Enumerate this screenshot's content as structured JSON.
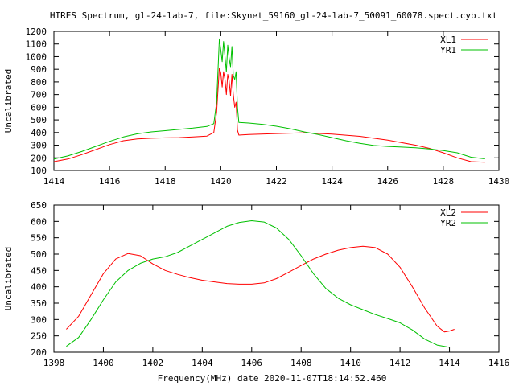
{
  "figure": {
    "title": "HIRES Spectrum, gl-24-lab-7, file:Skynet_59160_gl-24-lab-7_50091_60078.spect.cyb.txt",
    "xlabel": "Frequency(MHz) date 2020-11-07T18:14:52.460"
  },
  "chart_data": [
    {
      "type": "line",
      "title": "",
      "xlabel": "",
      "ylabel": "Uncalibrated",
      "xlim": [
        1414,
        1430
      ],
      "ylim": [
        100,
        1200
      ],
      "xticks": [
        1414,
        1416,
        1418,
        1420,
        1422,
        1424,
        1426,
        1428,
        1430
      ],
      "yticks": [
        100,
        200,
        300,
        400,
        500,
        600,
        700,
        800,
        900,
        1000,
        1100,
        1200
      ],
      "grid": false,
      "legend": "top-right",
      "series": [
        {
          "name": "XL1",
          "color": "#ff0000",
          "points": [
            [
              1414.0,
              170
            ],
            [
              1414.5,
              190
            ],
            [
              1415.0,
              225
            ],
            [
              1415.5,
              265
            ],
            [
              1416.0,
              305
            ],
            [
              1416.5,
              335
            ],
            [
              1417.0,
              350
            ],
            [
              1417.5,
              355
            ],
            [
              1418.0,
              358
            ],
            [
              1418.5,
              360
            ],
            [
              1419.0,
              365
            ],
            [
              1419.5,
              372
            ],
            [
              1419.75,
              400
            ],
            [
              1419.85,
              560
            ],
            [
              1419.95,
              910
            ],
            [
              1420.0,
              870
            ],
            [
              1420.05,
              760
            ],
            [
              1420.1,
              880
            ],
            [
              1420.15,
              820
            ],
            [
              1420.2,
              700
            ],
            [
              1420.25,
              860
            ],
            [
              1420.3,
              810
            ],
            [
              1420.35,
              690
            ],
            [
              1420.4,
              860
            ],
            [
              1420.45,
              700
            ],
            [
              1420.5,
              600
            ],
            [
              1420.55,
              640
            ],
            [
              1420.6,
              420
            ],
            [
              1420.65,
              380
            ],
            [
              1421.0,
              385
            ],
            [
              1422.0,
              392
            ],
            [
              1423.0,
              398
            ],
            [
              1424.0,
              388
            ],
            [
              1425.0,
              370
            ],
            [
              1425.5,
              355
            ],
            [
              1426.0,
              340
            ],
            [
              1426.5,
              320
            ],
            [
              1427.0,
              300
            ],
            [
              1427.5,
              275
            ],
            [
              1428.0,
              240
            ],
            [
              1428.5,
              200
            ],
            [
              1429.0,
              170
            ],
            [
              1429.5,
              165
            ]
          ]
        },
        {
          "name": "YR1",
          "color": "#00c000",
          "points": [
            [
              1414.0,
              190
            ],
            [
              1414.5,
              215
            ],
            [
              1415.0,
              250
            ],
            [
              1415.5,
              290
            ],
            [
              1416.0,
              330
            ],
            [
              1416.5,
              365
            ],
            [
              1417.0,
              390
            ],
            [
              1417.5,
              405
            ],
            [
              1418.0,
              415
            ],
            [
              1418.5,
              425
            ],
            [
              1419.0,
              435
            ],
            [
              1419.5,
              448
            ],
            [
              1419.75,
              470
            ],
            [
              1419.85,
              640
            ],
            [
              1419.95,
              1140
            ],
            [
              1420.0,
              1050
            ],
            [
              1420.05,
              960
            ],
            [
              1420.1,
              1120
            ],
            [
              1420.15,
              1000
            ],
            [
              1420.2,
              880
            ],
            [
              1420.25,
              1090
            ],
            [
              1420.3,
              990
            ],
            [
              1420.35,
              920
            ],
            [
              1420.4,
              1080
            ],
            [
              1420.45,
              850
            ],
            [
              1420.5,
              820
            ],
            [
              1420.55,
              880
            ],
            [
              1420.6,
              600
            ],
            [
              1420.65,
              480
            ],
            [
              1421.0,
              475
            ],
            [
              1421.5,
              465
            ],
            [
              1422.0,
              450
            ],
            [
              1422.5,
              430
            ],
            [
              1423.0,
              405
            ],
            [
              1423.5,
              385
            ],
            [
              1424.0,
              360
            ],
            [
              1424.5,
              335
            ],
            [
              1425.0,
              315
            ],
            [
              1425.5,
              298
            ],
            [
              1426.0,
              290
            ],
            [
              1426.5,
              285
            ],
            [
              1427.0,
              280
            ],
            [
              1427.5,
              270
            ],
            [
              1428.0,
              258
            ],
            [
              1428.5,
              240
            ],
            [
              1429.0,
              205
            ],
            [
              1429.5,
              192
            ]
          ]
        }
      ]
    },
    {
      "type": "line",
      "title": "",
      "xlabel": "Frequency(MHz) date 2020-11-07T18:14:52.460",
      "ylabel": "Uncalibrated",
      "xlim": [
        1398,
        1416
      ],
      "ylim": [
        200,
        650
      ],
      "xticks": [
        1398,
        1400,
        1402,
        1404,
        1406,
        1408,
        1410,
        1412,
        1414,
        1416
      ],
      "yticks": [
        200,
        250,
        300,
        350,
        400,
        450,
        500,
        550,
        600,
        650
      ],
      "grid": false,
      "legend": "top-right",
      "series": [
        {
          "name": "XL2",
          "color": "#ff0000",
          "points": [
            [
              1398.5,
              270
            ],
            [
              1399.0,
              310
            ],
            [
              1399.5,
              375
            ],
            [
              1400.0,
              440
            ],
            [
              1400.5,
              485
            ],
            [
              1401.0,
              502
            ],
            [
              1401.5,
              495
            ],
            [
              1402.0,
              470
            ],
            [
              1402.5,
              450
            ],
            [
              1403.0,
              438
            ],
            [
              1403.5,
              428
            ],
            [
              1404.0,
              420
            ],
            [
              1404.5,
              415
            ],
            [
              1405.0,
              410
            ],
            [
              1405.5,
              408
            ],
            [
              1406.0,
              408
            ],
            [
              1406.5,
              412
            ],
            [
              1407.0,
              425
            ],
            [
              1407.5,
              445
            ],
            [
              1408.0,
              465
            ],
            [
              1408.5,
              485
            ],
            [
              1409.0,
              500
            ],
            [
              1409.5,
              512
            ],
            [
              1410.0,
              520
            ],
            [
              1410.5,
              524
            ],
            [
              1411.0,
              520
            ],
            [
              1411.5,
              500
            ],
            [
              1412.0,
              460
            ],
            [
              1412.5,
              400
            ],
            [
              1413.0,
              335
            ],
            [
              1413.5,
              280
            ],
            [
              1413.8,
              262
            ],
            [
              1414.0,
              265
            ],
            [
              1414.2,
              270
            ]
          ]
        },
        {
          "name": "YR2",
          "color": "#00c000",
          "points": [
            [
              1398.5,
              218
            ],
            [
              1399.0,
              245
            ],
            [
              1399.5,
              300
            ],
            [
              1400.0,
              360
            ],
            [
              1400.5,
              415
            ],
            [
              1401.0,
              450
            ],
            [
              1401.5,
              472
            ],
            [
              1402.0,
              485
            ],
            [
              1402.5,
              492
            ],
            [
              1403.0,
              505
            ],
            [
              1403.5,
              525
            ],
            [
              1404.0,
              545
            ],
            [
              1404.5,
              565
            ],
            [
              1405.0,
              585
            ],
            [
              1405.5,
              597
            ],
            [
              1406.0,
              602
            ],
            [
              1406.5,
              598
            ],
            [
              1407.0,
              580
            ],
            [
              1407.5,
              545
            ],
            [
              1408.0,
              495
            ],
            [
              1408.5,
              440
            ],
            [
              1409.0,
              395
            ],
            [
              1409.5,
              365
            ],
            [
              1410.0,
              345
            ],
            [
              1410.5,
              330
            ],
            [
              1411.0,
              315
            ],
            [
              1411.5,
              303
            ],
            [
              1412.0,
              290
            ],
            [
              1412.5,
              268
            ],
            [
              1413.0,
              240
            ],
            [
              1413.5,
              222
            ],
            [
              1414.0,
              215
            ]
          ]
        }
      ]
    }
  ]
}
